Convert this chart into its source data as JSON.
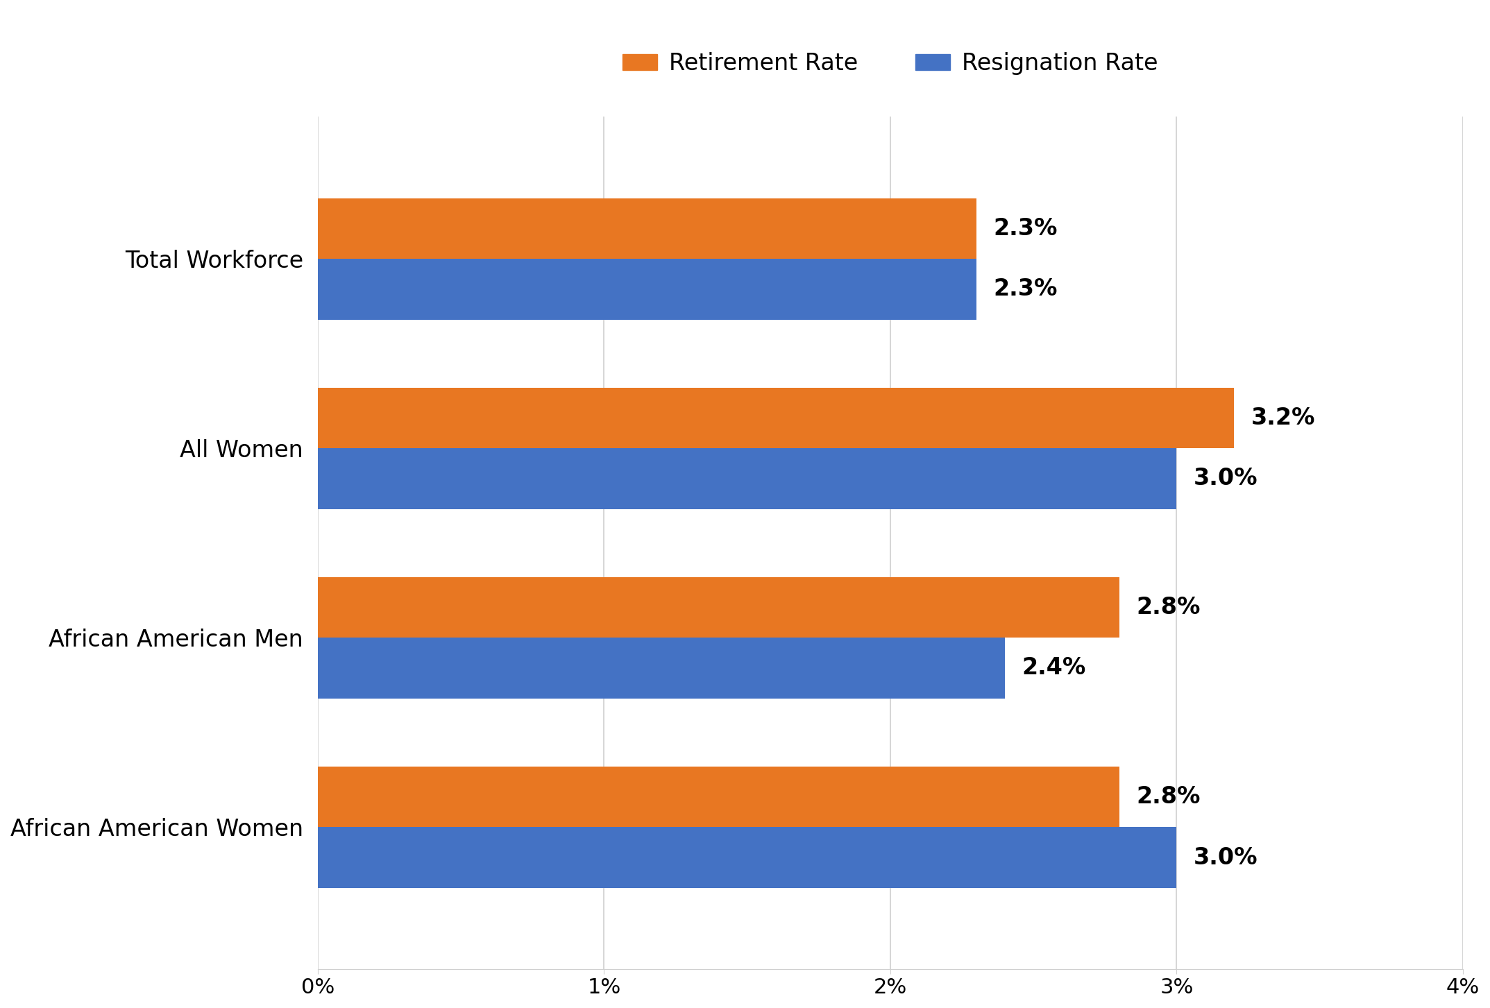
{
  "categories": [
    "African American Women",
    "African American Men",
    "All Women",
    "Total Workforce"
  ],
  "retirement_rates": [
    2.8,
    2.8,
    3.2,
    2.3
  ],
  "resignation_rates": [
    3.0,
    2.4,
    3.0,
    2.3
  ],
  "retirement_color": "#E87722",
  "resignation_color": "#4472C4",
  "retirement_label": "Retirement Rate",
  "resignation_label": "Resignation Rate",
  "xlim": [
    0,
    4.0
  ],
  "xticks": [
    0,
    1,
    2,
    3,
    4
  ],
  "xtick_labels": [
    "0%",
    "1%",
    "2%",
    "3%",
    "4%"
  ],
  "background_color": "#ffffff",
  "grid_color": "#d0d0d0",
  "bar_height": 0.32,
  "label_fontsize": 24,
  "tick_fontsize": 22,
  "legend_fontsize": 24,
  "annotation_fontsize": 24
}
